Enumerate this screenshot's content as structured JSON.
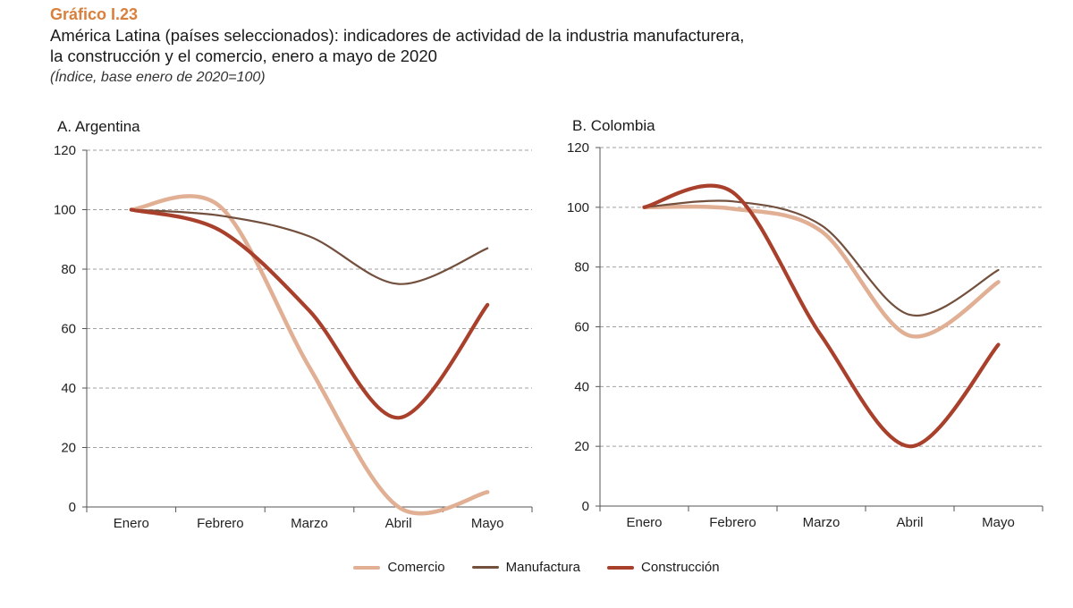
{
  "header": {
    "figure_label": "Gráfico I.23",
    "title_line1": "América Latina (países seleccionados): indicadores de actividad de la industria manufacturera,",
    "title_line2": "la construcción y el comercio, enero a mayo de 2020",
    "subtitle": "(Índice, base enero de 2020=100)"
  },
  "colors": {
    "comercio": "#e0af94",
    "manufactura": "#73503d",
    "construccion": "#a8402c",
    "grid": "#a0a0a0",
    "axis": "#555555"
  },
  "legend": [
    {
      "key": "comercio",
      "label": "Comercio"
    },
    {
      "key": "manufactura",
      "label": "Manufactura"
    },
    {
      "key": "construccion",
      "label": "Construcción"
    }
  ],
  "chart_data": [
    {
      "type": "line",
      "title": "A. Argentina",
      "categories": [
        "Enero",
        "Febrero",
        "Marzo",
        "Abril",
        "Mayo"
      ],
      "ylim": [
        0,
        120
      ],
      "yticks": [
        0,
        20,
        40,
        60,
        80,
        100,
        120
      ],
      "grid": true,
      "series": [
        {
          "key": "comercio",
          "name": "Comercio",
          "values": [
            100,
            101,
            47,
            0,
            5
          ]
        },
        {
          "key": "manufactura",
          "name": "Manufactura",
          "values": [
            100,
            98,
            91,
            75,
            87
          ]
        },
        {
          "key": "construccion",
          "name": "Construcción",
          "values": [
            100,
            93,
            66,
            30,
            68
          ]
        }
      ]
    },
    {
      "type": "line",
      "title": "B. Colombia",
      "categories": [
        "Enero",
        "Febrero",
        "Marzo",
        "Abril",
        "Mayo"
      ],
      "ylim": [
        0,
        120
      ],
      "yticks": [
        0,
        20,
        40,
        60,
        80,
        100,
        120
      ],
      "grid": true,
      "series": [
        {
          "key": "comercio",
          "name": "Comercio",
          "values": [
            100,
            99.5,
            92,
            57,
            75
          ]
        },
        {
          "key": "manufactura",
          "name": "Manufactura",
          "values": [
            100,
            102,
            94,
            64,
            79
          ]
        },
        {
          "key": "construccion",
          "name": "Construcción",
          "values": [
            100,
            105,
            57,
            20,
            54
          ]
        }
      ]
    }
  ]
}
